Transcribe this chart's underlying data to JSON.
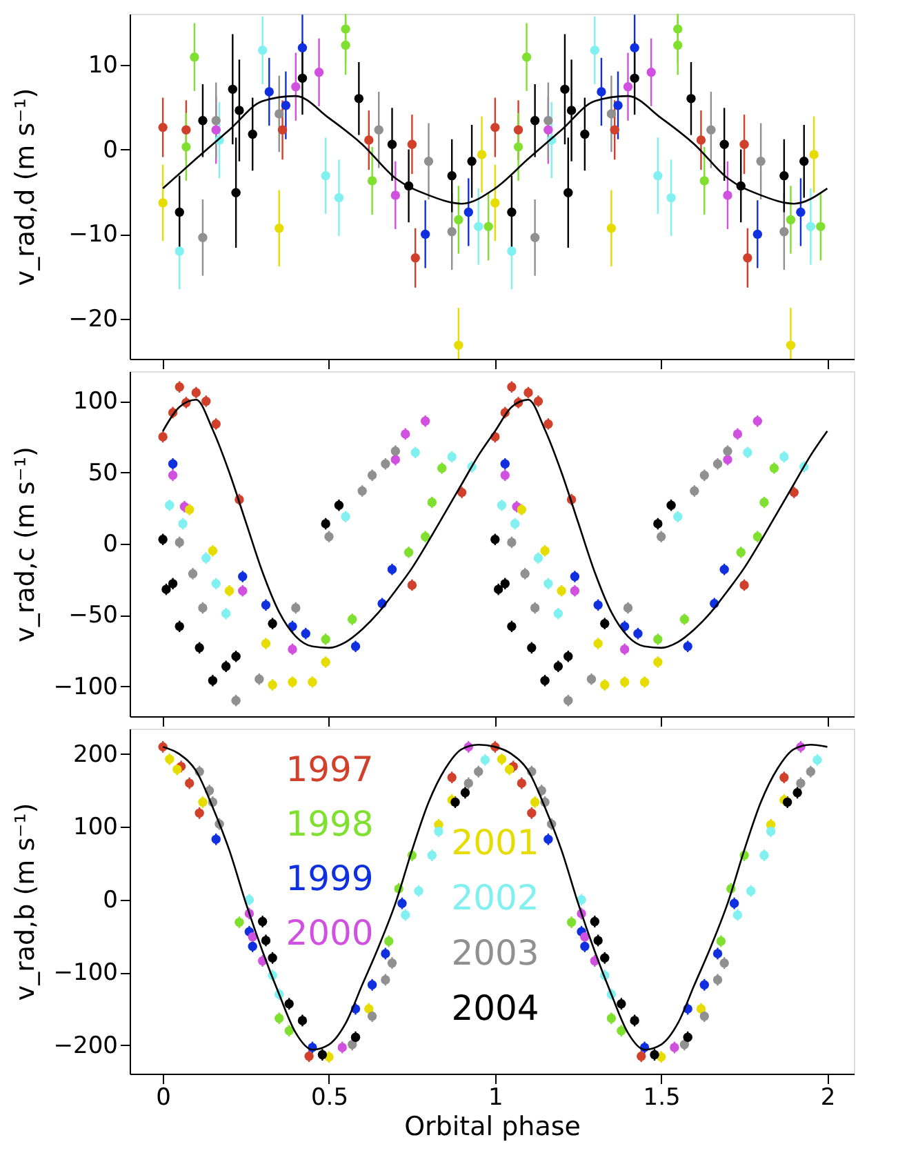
{
  "chart_data": [
    {
      "type": "scatter",
      "marker": "circle",
      "tick_labels": "y",
      "ylabel": "v_rad,d (m s⁻¹)",
      "xlim": [
        -0.1,
        2.08
      ],
      "xticks": [
        0,
        0.5,
        1,
        1.5,
        2
      ],
      "ylim": [
        -24.7,
        16
      ],
      "yticks": [
        -20,
        -10,
        0,
        10
      ],
      "series": [
        {
          "color": "#d0402a",
          "x": [
            0,
            0.07,
            0.36,
            0.62,
            0.75,
            0.76,
            1,
            1.07,
            1.36,
            1.62,
            1.75,
            1.76
          ],
          "values": [
            2.6,
            2.3,
            2.3,
            1.1,
            0.6,
            -12.8,
            2.6,
            2.3,
            2.3,
            1.1,
            0.6,
            -12.8
          ],
          "errors": [
            3.5,
            3.5,
            3.5,
            3.5,
            3.5,
            3.5,
            3.5,
            3.5,
            3.5,
            3.5,
            3.5,
            3.5
          ]
        },
        {
          "color": "#80e030",
          "x": [
            0.07,
            0.095,
            0.55,
            0.55,
            0.63,
            0.89,
            0.98,
            1.07,
            1.095,
            1.55,
            1.55,
            1.63,
            1.89,
            1.98
          ],
          "values": [
            0.3,
            10.9,
            14.2,
            12.3,
            -3.7,
            -8.3,
            -9.1,
            0.3,
            10.9,
            14.2,
            12.3,
            -3.7,
            -8.3,
            -9.1
          ],
          "errors": [
            4,
            4,
            [
              10.2,
              16
            ],
            3.5,
            4,
            4,
            4,
            4,
            4,
            [
              10.2,
              16
            ],
            3.5,
            4,
            4,
            4
          ]
        },
        {
          "color": "#1030e0",
          "x": [
            0.32,
            0.37,
            0.42,
            0.79,
            0.92,
            1.32,
            1.37,
            1.42,
            1.79,
            1.92
          ],
          "values": [
            6.8,
            5.2,
            12.0,
            -10.0,
            -7.4,
            6.8,
            5.2,
            12.0,
            -10.0,
            -7.4
          ],
          "errors": [
            4,
            4,
            3.9,
            4,
            4,
            4,
            4,
            3.9,
            4,
            4
          ]
        },
        {
          "color": "#d050e0",
          "x": [
            0.16,
            0.4,
            0.47,
            0.7,
            1.16,
            1.4,
            1.47,
            1.7
          ],
          "values": [
            2.3,
            7.4,
            9.1,
            -5.4,
            2.3,
            7.4,
            9.1,
            -5.4
          ],
          "errors": [
            4,
            4,
            4,
            4,
            4,
            4,
            4,
            4
          ]
        },
        {
          "color": "#e6dc00",
          "x": [
            0,
            0.35,
            0.89,
            0.96,
            1,
            1.35,
            1.89,
            1.96
          ],
          "values": [
            -6.3,
            -9.3,
            -23.1,
            -0.6,
            -6.3,
            -9.3,
            -23.1,
            -0.6
          ],
          "errors": [
            4.5,
            4.5,
            [
              -24.7,
              -18.7
            ],
            4.5,
            4.5,
            4.5,
            [
              -24.7,
              -18.7
            ],
            4.5
          ]
        },
        {
          "color": "#80f0f0",
          "x": [
            0.05,
            0.17,
            0.3,
            0.49,
            0.53,
            0.95,
            1.05,
            1.17,
            1.3,
            1.49,
            1.53,
            1.95
          ],
          "values": [
            -12.0,
            1.1,
            11.7,
            -3.1,
            -5.7,
            -9.1,
            -12.0,
            1.1,
            11.7,
            -3.1,
            -5.7,
            -9.1
          ],
          "errors": [
            4.5,
            4.5,
            4,
            4.5,
            4.5,
            4.5,
            4.5,
            4.5,
            4,
            4.5,
            4.5,
            4.5
          ]
        },
        {
          "color": "#909090",
          "x": [
            0.12,
            0.16,
            0.35,
            0.65,
            0.8,
            0.87,
            1.12,
            1.16,
            1.35,
            1.65,
            1.8,
            1.87
          ],
          "values": [
            -10.4,
            3.4,
            4.2,
            2.3,
            -1.4,
            -9.7,
            -10.4,
            3.4,
            4.2,
            2.3,
            -1.4,
            -9.7
          ],
          "errors": [
            4.5,
            4.5,
            4.5,
            4.5,
            4.5,
            4.5,
            4.5,
            4.5,
            4.5,
            4.5,
            4.5,
            4.5
          ]
        },
        {
          "color": "#000000",
          "x": [
            0.05,
            0.12,
            0.21,
            0.22,
            0.23,
            0.27,
            0.42,
            0.59,
            0.69,
            0.74,
            0.87,
            0.93,
            1.05,
            1.12,
            1.21,
            1.22,
            1.23,
            1.27,
            1.42,
            1.59,
            1.69,
            1.74,
            1.87,
            1.93
          ],
          "values": [
            -7.4,
            3.4,
            7.1,
            -5.1,
            4.6,
            1.8,
            8.4,
            6.0,
            0.6,
            -4.3,
            -3.1,
            -1.4,
            -7.4,
            3.4,
            7.1,
            -5.1,
            4.6,
            1.8,
            8.4,
            6.0,
            0.6,
            -4.3,
            -3.1,
            -1.4
          ],
          "errors": [
            4.3,
            4.3,
            6.5,
            6.5,
            6,
            4.3,
            4.3,
            4.3,
            4.3,
            4.3,
            4.3,
            4.3,
            4.3,
            4.3,
            6.5,
            6.5,
            6,
            4.3,
            4.3,
            4.3,
            4.3,
            4.3,
            4.3,
            4.3
          ]
        },
        {
          "type": "line",
          "marker": "none",
          "color": "#000000",
          "x": [
            0,
            0.1,
            0.2,
            0.3,
            0.4,
            0.5,
            0.6,
            0.7,
            0.8,
            0.9,
            1,
            1.1,
            1.2,
            1.3,
            1.4,
            1.5,
            1.6,
            1.7,
            1.8,
            1.9,
            2
          ],
          "values": [
            -4.6,
            -1.1,
            2.3,
            5.7,
            6.3,
            3.7,
            0.6,
            -3.4,
            -5.4,
            -6.4,
            -4.6,
            -1.1,
            2.3,
            5.7,
            6.3,
            3.7,
            0.6,
            -3.4,
            -5.4,
            -6.4,
            -4.6
          ]
        }
      ]
    },
    {
      "type": "scatter",
      "marker": "circle",
      "tick_labels": "y",
      "ylabel": "v_rad,c (m s⁻¹)",
      "xlim": [
        -0.1,
        2.08
      ],
      "xticks": [
        0,
        0.5,
        1,
        1.5,
        2
      ],
      "ylim": [
        -121,
        121
      ],
      "yticks": [
        -100,
        -50,
        0,
        50,
        100
      ],
      "series": [
        {
          "color": "#d0402a",
          "x": [
            0,
            0.03,
            0.05,
            0.07,
            0.1,
            0.13,
            0.16,
            0.23,
            0.75,
            0.9,
            1,
            1.03,
            1.05,
            1.07,
            1.1,
            1.13,
            1.16,
            1.23,
            1.75,
            1.9
          ],
          "values": [
            75,
            92,
            110,
            99,
            106,
            100,
            84,
            31,
            -29,
            36,
            75,
            92,
            110,
            99,
            106,
            100,
            84,
            31,
            -29,
            36
          ],
          "errors": [
            4,
            4,
            4,
            4,
            4,
            4,
            4,
            4,
            4,
            4,
            4,
            4,
            4,
            4,
            4,
            4,
            4,
            4,
            4,
            4
          ]
        },
        {
          "color": "#80e030",
          "x": [
            0.49,
            0.57,
            0.74,
            0.79,
            0.81,
            0.84,
            1.49,
            1.57,
            1.74,
            1.79,
            1.81,
            1.84
          ],
          "values": [
            -67,
            -53,
            -6,
            5,
            29,
            53,
            -67,
            -53,
            -6,
            5,
            29,
            53
          ],
          "errors": [
            4,
            4,
            4,
            4,
            4,
            4,
            4,
            4,
            4,
            4,
            4,
            4
          ]
        },
        {
          "color": "#1030e0",
          "x": [
            0.03,
            0.24,
            0.31,
            0.39,
            0.43,
            0.58,
            0.66,
            0.69,
            1.03,
            1.24,
            1.31,
            1.39,
            1.43,
            1.58,
            1.66,
            1.69
          ],
          "values": [
            56,
            -23,
            -43,
            -58,
            -63,
            -72,
            -42,
            -18,
            56,
            -23,
            -43,
            -58,
            -63,
            -72,
            -42,
            -18
          ],
          "errors": [
            4,
            4,
            4,
            4,
            4,
            4,
            4,
            4,
            4,
            4,
            4,
            4,
            4,
            4,
            4,
            4
          ]
        },
        {
          "color": "#d050e0",
          "x": [
            0.03,
            0.065,
            0.24,
            0.39,
            0.7,
            0.73,
            0.79,
            1.03,
            1.065,
            1.24,
            1.39,
            1.7,
            1.73,
            1.79
          ],
          "values": [
            48,
            26,
            -33,
            -74,
            59,
            77,
            86,
            48,
            26,
            -33,
            -74,
            59,
            77,
            86
          ],
          "errors": [
            4,
            4,
            4,
            4,
            4,
            4,
            4,
            4,
            4,
            4,
            4,
            4,
            4,
            4
          ]
        },
        {
          "color": "#e6dc00",
          "x": [
            0.08,
            0.15,
            0.2,
            0.31,
            0.33,
            0.39,
            0.45,
            0.49,
            1.08,
            1.15,
            1.2,
            1.31,
            1.33,
            1.39,
            1.45,
            1.49
          ],
          "values": [
            24,
            -5,
            -33,
            -70,
            -99,
            -97,
            -97,
            -83,
            24,
            -5,
            -33,
            -70,
            -99,
            -97,
            -97,
            -83
          ],
          "errors": [
            4,
            4,
            4,
            4,
            4,
            4,
            4,
            4,
            4,
            4,
            4,
            4,
            4,
            4,
            4,
            4
          ]
        },
        {
          "color": "#80f0f0",
          "x": [
            0.02,
            0.06,
            0.13,
            0.16,
            0.19,
            0.55,
            0.76,
            0.87,
            0.93,
            1.02,
            1.06,
            1.13,
            1.16,
            1.19,
            1.55,
            1.76,
            1.87,
            1.93
          ],
          "values": [
            27,
            14,
            -10,
            -28,
            -49,
            19,
            64,
            61,
            54,
            27,
            14,
            -10,
            -28,
            -49,
            19,
            64,
            61,
            54
          ],
          "errors": [
            4,
            4,
            4,
            4,
            4,
            4,
            4,
            4,
            4,
            4,
            4,
            4,
            4,
            4,
            4,
            4,
            4,
            4
          ]
        },
        {
          "color": "#909090",
          "x": [
            0.05,
            0.09,
            0.12,
            0.22,
            0.29,
            0.4,
            0.5,
            0.6,
            0.63,
            0.67,
            0.7,
            1.05,
            1.09,
            1.12,
            1.22,
            1.29,
            1.4,
            1.5,
            1.6,
            1.63,
            1.67,
            1.7
          ],
          "values": [
            1,
            -21,
            -45,
            -110,
            -95,
            -45,
            5,
            37,
            48,
            56,
            65,
            1,
            -21,
            -45,
            -110,
            -95,
            -45,
            5,
            37,
            48,
            56,
            65
          ],
          "errors": [
            4,
            4,
            4,
            4,
            4,
            4,
            4,
            4,
            4,
            4,
            4,
            4,
            4,
            4,
            4,
            4,
            4,
            4,
            4,
            4,
            4,
            4
          ]
        },
        {
          "color": "#000000",
          "x": [
            0,
            0.01,
            0.03,
            0.05,
            0.11,
            0.15,
            0.19,
            0.22,
            0.33,
            0.49,
            0.53,
            1,
            1.01,
            1.03,
            1.05,
            1.11,
            1.15,
            1.19,
            1.22,
            1.33,
            1.49,
            1.53
          ],
          "values": [
            3,
            -32,
            -28,
            -58,
            -73,
            -96,
            -86,
            -79,
            -56,
            14,
            27,
            3,
            -32,
            -28,
            -58,
            -73,
            -96,
            -86,
            -79,
            -56,
            14,
            27
          ],
          "errors": [
            4,
            4,
            4,
            4,
            4,
            4,
            4,
            4,
            4,
            4,
            4,
            4,
            4,
            4,
            4,
            4,
            4,
            4,
            4,
            4,
            4,
            4
          ]
        },
        {
          "type": "line",
          "color": "#000000",
          "x": [
            0,
            0.05,
            0.1,
            0.15,
            0.2,
            0.25,
            0.3,
            0.35,
            0.4,
            0.45,
            0.5,
            0.55,
            0.6,
            0.65,
            0.7,
            0.75,
            0.8,
            0.85,
            0.9,
            0.95,
            1,
            1.05,
            1.1,
            1.15,
            1.2,
            1.25,
            1.3,
            1.35,
            1.4,
            1.45,
            1.5,
            1.55,
            1.6,
            1.65,
            1.7,
            1.75,
            1.8,
            1.85,
            1.9,
            1.95,
            2
          ],
          "marker": "none",
          "values": [
            79,
            96,
            101,
            80,
            50,
            15,
            -20,
            -48,
            -65,
            -72,
            -73,
            -69,
            -60,
            -48,
            -33,
            -17,
            2,
            22,
            42,
            62,
            79,
            96,
            101,
            80,
            50,
            15,
            -20,
            -48,
            -65,
            -72,
            -73,
            -69,
            -60,
            -48,
            -33,
            -17,
            2,
            22,
            42,
            62,
            79
          ]
        }
      ]
    },
    {
      "type": "scatter",
      "marker": "circle",
      "legend": "top left",
      "xlabel": "Orbital phase",
      "ylabel": "v_rad,b (m s⁻¹)",
      "xlim": [
        -0.1,
        2.08
      ],
      "xticks": [
        0,
        0.5,
        1,
        1.5,
        2
      ],
      "ylim": [
        -239,
        235
      ],
      "yticks": [
        -200,
        -100,
        0,
        100,
        200
      ],
      "series": [
        {
          "name": "1997",
          "color": "#d0402a",
          "x": [
            0,
            0.055,
            0.08,
            0.11,
            0.44,
            0.87,
            1,
            1.055,
            1.08,
            1.11,
            1.44,
            1.87
          ],
          "values": [
            210,
            183,
            160,
            119,
            -215,
            168,
            210,
            183,
            160,
            119,
            -215,
            168
          ],
          "errors": [
            8,
            8,
            8,
            8,
            8,
            8,
            8,
            8,
            8,
            8,
            8,
            8
          ]
        },
        {
          "name": "1998",
          "color": "#80e030",
          "x": [
            0.23,
            0.35,
            0.38,
            0.68,
            0.71,
            0.75,
            1.23,
            1.35,
            1.38,
            1.68,
            1.71,
            1.75
          ],
          "values": [
            -31,
            -163,
            -180,
            -57,
            15,
            61,
            -31,
            -163,
            -180,
            -57,
            15,
            61
          ],
          "errors": [
            8,
            8,
            8,
            8,
            8,
            8,
            8,
            8,
            8,
            8,
            8,
            8
          ]
        },
        {
          "name": "1999",
          "color": "#1030e0",
          "x": [
            0.16,
            0.26,
            0.27,
            0.45,
            0.58,
            0.63,
            0.67,
            0.72,
            1.16,
            1.26,
            1.27,
            1.45,
            1.58,
            1.63,
            1.67,
            1.72
          ],
          "values": [
            83,
            -44,
            -64,
            -203,
            -150,
            -117,
            -74,
            -5,
            83,
            -44,
            -64,
            -203,
            -150,
            -117,
            -74,
            -5
          ],
          "errors": [
            8,
            8,
            8,
            8,
            8,
            8,
            8,
            8,
            8,
            8,
            8,
            8,
            8,
            8,
            8,
            8
          ]
        },
        {
          "name": "2000",
          "color": "#d050e0",
          "x": [
            0.26,
            0.27,
            0.3,
            0.54,
            0.92,
            1.26,
            1.27,
            1.3,
            1.54,
            1.92
          ],
          "values": [
            -19,
            -51,
            -84,
            -203,
            210,
            -19,
            -51,
            -84,
            -203,
            210
          ],
          "errors": [
            8,
            8,
            8,
            8,
            8,
            8,
            8,
            8,
            8,
            8
          ]
        },
        {
          "name": "2001",
          "color": "#e6dc00",
          "x": [
            0.02,
            0.043,
            0.12,
            0.5,
            0.62,
            0.83,
            0.87,
            1.02,
            1.043,
            1.12,
            1.5,
            1.62,
            1.83,
            1.87
          ],
          "values": [
            193,
            179,
            134,
            -216,
            -150,
            103,
            137,
            193,
            179,
            134,
            -216,
            -150,
            103,
            137
          ],
          "errors": [
            8,
            8,
            8,
            8,
            8,
            8,
            8,
            8,
            8,
            8,
            8,
            8,
            8,
            8
          ]
        },
        {
          "name": "2002",
          "color": "#80f0f0",
          "x": [
            0.26,
            0.33,
            0.35,
            0.73,
            0.77,
            0.81,
            0.83,
            0.97,
            1.26,
            1.33,
            1.35,
            1.73,
            1.77,
            1.81,
            1.83,
            1.97
          ],
          "values": [
            0,
            -104,
            -130,
            -21,
            12,
            61,
            94,
            192,
            0,
            -104,
            -130,
            -21,
            12,
            61,
            94,
            192
          ],
          "errors": [
            8,
            8,
            8,
            8,
            8,
            8,
            8,
            8,
            8,
            8,
            8,
            8,
            8,
            8,
            8,
            8
          ]
        },
        {
          "name": "2003",
          "color": "#909090",
          "x": [
            0.11,
            0.14,
            0.15,
            0.17,
            0.57,
            0.63,
            0.67,
            0.69,
            0.92,
            0.95,
            1.11,
            1.14,
            1.15,
            1.17,
            1.57,
            1.63,
            1.67,
            1.69,
            1.92,
            1.95
          ],
          "values": [
            176,
            150,
            134,
            104,
            -199,
            -160,
            -110,
            -87,
            160,
            176,
            176,
            150,
            134,
            104,
            -199,
            -160,
            -110,
            -87,
            160,
            176
          ],
          "errors": [
            8,
            8,
            8,
            8,
            8,
            8,
            8,
            8,
            8,
            8,
            8,
            8,
            8,
            8,
            8,
            8,
            8,
            8,
            8,
            8
          ]
        },
        {
          "name": "2004",
          "color": "#000000",
          "x": [
            0.3,
            0.31,
            0.33,
            0.38,
            0.42,
            0.48,
            0.58,
            0.88,
            0.91,
            1.3,
            1.31,
            1.33,
            1.38,
            1.42,
            1.48,
            1.58,
            1.88,
            1.91
          ],
          "values": [
            -30,
            -56,
            -80,
            -143,
            -166,
            -213,
            -189,
            134,
            147,
            -30,
            -56,
            -80,
            -143,
            -166,
            -213,
            -189,
            134,
            147
          ],
          "errors": [
            8,
            8,
            8,
            8,
            8,
            8,
            8,
            8,
            8,
            8,
            8,
            8,
            8,
            8,
            8,
            8,
            8,
            8
          ]
        },
        {
          "type": "line",
          "color": "#000000",
          "x": [
            0,
            0.05,
            0.1,
            0.15,
            0.2,
            0.25,
            0.3,
            0.35,
            0.4,
            0.45,
            0.5,
            0.55,
            0.6,
            0.65,
            0.7,
            0.75,
            0.8,
            0.85,
            0.9,
            0.95,
            1,
            1.05,
            1.1,
            1.15,
            1.2,
            1.25,
            1.3,
            1.35,
            1.4,
            1.45,
            1.5,
            1.55,
            1.6,
            1.65,
            1.7,
            1.75,
            1.8,
            1.85,
            1.9,
            1.95,
            2
          ],
          "marker": "none",
          "values": [
            210,
            200,
            177,
            127,
            68,
            -5,
            -71,
            -130,
            -183,
            -206,
            -199,
            -170,
            -117,
            -64,
            -5,
            68,
            134,
            180,
            207,
            213,
            210,
            200,
            177,
            127,
            68,
            -5,
            -71,
            -130,
            -183,
            -206,
            -199,
            -170,
            -117,
            -64,
            -5,
            68,
            134,
            180,
            207,
            213,
            210
          ]
        }
      ]
    }
  ]
}
